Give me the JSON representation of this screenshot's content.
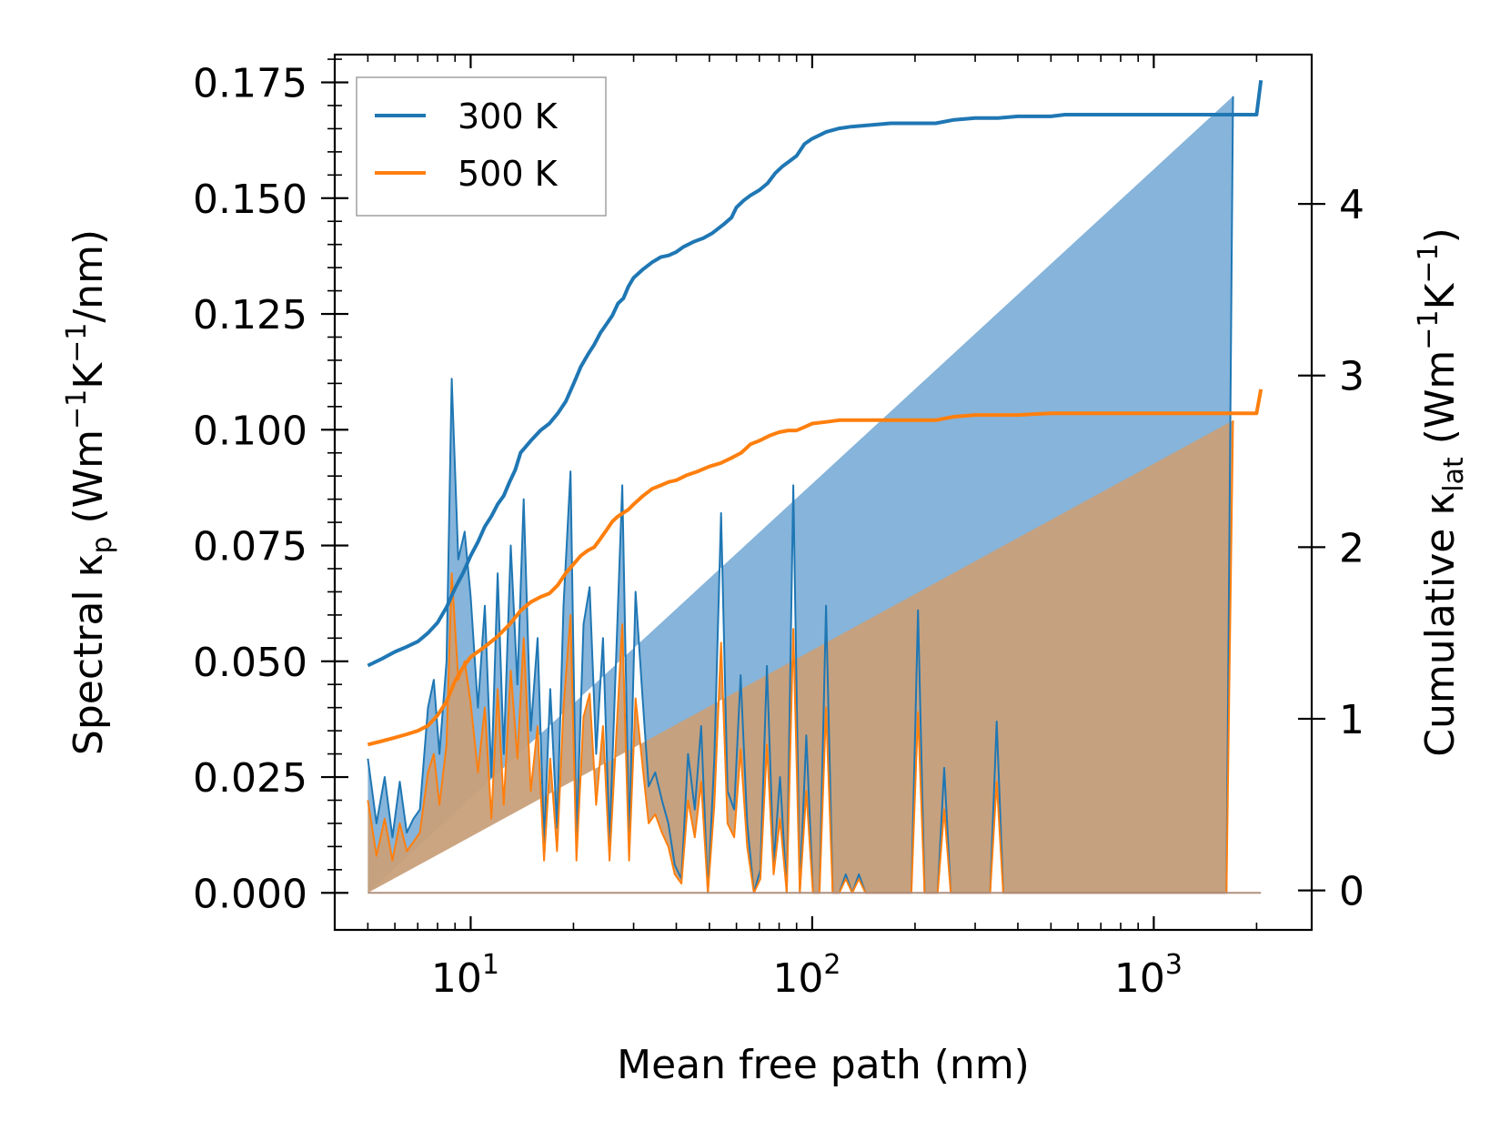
{
  "chart_data": {
    "type": "line",
    "title": "",
    "xlabel": "Mean free path (nm)",
    "xscale": "log",
    "xlim": [
      4.0,
      2900
    ],
    "x_ticks": [
      {
        "value": 10,
        "base": "10",
        "exp": "1"
      },
      {
        "value": 100,
        "base": "10",
        "exp": "2"
      },
      {
        "value": 1000,
        "base": "10",
        "exp": "3"
      }
    ],
    "ylabel_left": {
      "prefix": "Spectral κ",
      "sub": "p",
      "units_pre": " (Wm",
      "exp1": "−1",
      "mid": "K",
      "exp2": "−1",
      "units_post": "/nm)"
    },
    "ylim_left": [
      -0.008,
      0.181
    ],
    "y_ticks_left": [
      "0.000",
      "0.025",
      "0.050",
      "0.075",
      "0.100",
      "0.125",
      "0.150",
      "0.175"
    ],
    "ylabel_right": {
      "prefix": "Cumulative κ",
      "sub": "lat",
      "units_pre": " (Wm",
      "exp1": "−1",
      "mid": "K",
      "exp2": "−1",
      "units_post": ")"
    },
    "ylim_right": [
      -0.23,
      4.87
    ],
    "y_ticks_right": [
      "0",
      "1",
      "2",
      "3",
      "4"
    ],
    "legend": {
      "position": "upper-left",
      "entries": [
        "300 K",
        "500 K"
      ]
    },
    "colors": {
      "300K": "#1f77b4",
      "500K": "#ff7f0e",
      "fill300": "#7fb0d8",
      "fill500": "#c8a07a"
    },
    "spectral": {
      "axis": "left",
      "x": [
        5.0,
        5.3,
        5.6,
        5.9,
        6.2,
        6.5,
        6.8,
        7.1,
        7.5,
        7.8,
        8.1,
        8.5,
        8.8,
        9.2,
        9.6,
        10.0,
        10.5,
        11.0,
        11.5,
        12.0,
        12.5,
        13.1,
        13.7,
        14.3,
        15.0,
        15.7,
        16.4,
        17.1,
        17.9,
        18.7,
        19.6,
        20.4,
        21.4,
        22.3,
        23.3,
        24.4,
        25.5,
        26.6,
        27.8,
        29.1,
        30.4,
        31.8,
        33.2,
        34.7,
        36.3,
        37.9,
        39.6,
        41.4,
        43.3,
        45.3,
        47.3,
        49.5,
        51.7,
        54.1,
        56.5,
        59.1,
        61.7,
        64.5,
        67.5,
        70.5,
        73.7,
        77.1,
        80.5,
        84.2,
        88.0,
        92.0,
        96.1,
        100.5,
        105.0,
        109.8,
        114.8,
        120.0,
        125.4,
        131.0,
        137.0,
        143.2,
        149.6,
        156.4,
        163.5,
        170.9,
        178.6,
        186.7,
        195.1,
        204.0,
        213.2,
        222.8,
        232.9,
        243.4,
        254.5,
        266.0,
        278.0,
        290.6,
        303.7,
        317.5,
        331.8,
        346.8,
        362.5,
        378.9,
        396.1,
        414.0,
        432.7,
        452.3,
        472.8,
        494.2,
        516.5,
        539.9,
        564.3,
        589.9,
        616.6,
        644.5,
        673.6,
        704.1,
        736.0,
        769.3,
        804.1,
        840.4,
        878.5,
        918.2,
        959.8,
        1003.2,
        1048.6,
        1096.0,
        1145.6,
        1197.4,
        1251.6,
        1308.2,
        1367.4,
        1429.3,
        1493.9,
        1561.5,
        1632.2,
        1706.0,
        1783.2,
        1863.9,
        1948.2,
        2000.0,
        2060.0
      ],
      "series_300K": [
        0.029,
        0.015,
        0.025,
        0.012,
        0.024,
        0.013,
        0.016,
        0.018,
        0.04,
        0.046,
        0.03,
        0.05,
        0.111,
        0.072,
        0.078,
        0.064,
        0.04,
        0.062,
        0.025,
        0.069,
        0.03,
        0.075,
        0.045,
        0.085,
        0.035,
        0.055,
        0.011,
        0.044,
        0.014,
        0.062,
        0.091,
        0.011,
        0.058,
        0.066,
        0.03,
        0.055,
        0.011,
        0.049,
        0.088,
        0.011,
        0.065,
        0.043,
        0.023,
        0.026,
        0.02,
        0.015,
        0.006,
        0.003,
        0.03,
        0.018,
        0.036,
        0.0,
        0.029,
        0.082,
        0.022,
        0.018,
        0.047,
        0.015,
        0.0,
        0.005,
        0.049,
        0.006,
        0.025,
        0.0,
        0.088,
        0.0,
        0.034,
        0.0,
        0.0,
        0.062,
        0.0,
        0.0,
        0.004,
        0.0,
        0.004,
        0.0,
        0.0,
        0.0,
        0.0,
        0.0,
        0.0,
        0.0,
        0.0,
        0.061,
        0.0,
        0.0,
        0.0,
        0.027,
        0.0,
        0.0,
        0.0,
        0.0,
        0.0,
        0.0,
        0.0,
        0.037,
        0.0,
        0.0,
        0.0,
        0.0,
        0.0,
        0.0,
        0.0,
        0.0,
        0.0,
        0.0,
        0.0,
        0.0,
        0.0,
        0.0,
        0.0,
        0.0,
        0.0,
        0.0,
        0.0,
        0.0,
        0.0,
        0.0,
        0.0,
        0.0,
        0.0,
        0.0,
        0.0,
        0.0,
        0.0,
        0.0,
        0.0,
        0.0,
        0.0,
        0.0,
        0.0,
        0.172
      ],
      "series_500K": [
        0.02,
        0.008,
        0.016,
        0.007,
        0.015,
        0.009,
        0.011,
        0.013,
        0.026,
        0.03,
        0.019,
        0.032,
        0.069,
        0.046,
        0.05,
        0.041,
        0.026,
        0.04,
        0.016,
        0.044,
        0.019,
        0.048,
        0.029,
        0.055,
        0.022,
        0.036,
        0.007,
        0.029,
        0.009,
        0.04,
        0.06,
        0.007,
        0.038,
        0.043,
        0.019,
        0.036,
        0.007,
        0.032,
        0.058,
        0.007,
        0.042,
        0.028,
        0.015,
        0.017,
        0.013,
        0.01,
        0.004,
        0.002,
        0.02,
        0.012,
        0.024,
        0.0,
        0.019,
        0.054,
        0.015,
        0.012,
        0.031,
        0.01,
        0.0,
        0.003,
        0.032,
        0.004,
        0.016,
        0.0,
        0.057,
        0.0,
        0.022,
        0.0,
        0.0,
        0.04,
        0.0,
        0.0,
        0.003,
        0.0,
        0.003,
        0.0,
        0.0,
        0.0,
        0.0,
        0.0,
        0.0,
        0.0,
        0.0,
        0.039,
        0.0,
        0.0,
        0.0,
        0.018,
        0.0,
        0.0,
        0.0,
        0.0,
        0.0,
        0.0,
        0.0,
        0.024,
        0.0,
        0.0,
        0.0,
        0.0,
        0.0,
        0.0,
        0.0,
        0.0,
        0.0,
        0.0,
        0.0,
        0.0,
        0.0,
        0.0,
        0.0,
        0.0,
        0.0,
        0.0,
        0.0,
        0.0,
        0.0,
        0.0,
        0.0,
        0.0,
        0.0,
        0.0,
        0.0,
        0.0,
        0.0,
        0.0,
        0.0,
        0.0,
        0.0,
        0.0,
        0.0,
        0.102
      ]
    },
    "cumulative": {
      "axis": "right",
      "series_300K": {
        "x": [
          5.0,
          5.5,
          6.0,
          6.5,
          7.0,
          7.5,
          8.0,
          8.5,
          9.0,
          9.5,
          10.0,
          10.5,
          11.0,
          11.5,
          12.0,
          12.5,
          13.0,
          13.5,
          14.0,
          15.0,
          16.0,
          17.0,
          18.0,
          19.0,
          20.0,
          21.0,
          22.0,
          23.0,
          24.0,
          25.0,
          26.0,
          27.0,
          28.0,
          29.0,
          30.0,
          32.0,
          34.0,
          36.0,
          38.0,
          40.0,
          42.0,
          45.0,
          48.0,
          51.0,
          55.0,
          58.0,
          60.0,
          63.0,
          66.0,
          70.0,
          74.0,
          78.0,
          82.0,
          86.0,
          90.0,
          95.0,
          100.0,
          110.0,
          120.0,
          130.0,
          150.0,
          170.0,
          200.0,
          230.0,
          260.0,
          300.0,
          350.0,
          400.0,
          450.0,
          500.0,
          550.0,
          600.0,
          700.0,
          800.0,
          1000.0,
          1300.0,
          1600.0,
          1900.0,
          2000.0,
          2060.0
        ],
        "y": [
          1.31,
          1.35,
          1.39,
          1.42,
          1.45,
          1.5,
          1.56,
          1.65,
          1.76,
          1.85,
          1.95,
          2.03,
          2.12,
          2.18,
          2.25,
          2.3,
          2.38,
          2.45,
          2.55,
          2.62,
          2.68,
          2.72,
          2.78,
          2.85,
          2.95,
          3.05,
          3.12,
          3.18,
          3.25,
          3.3,
          3.35,
          3.42,
          3.45,
          3.52,
          3.57,
          3.62,
          3.66,
          3.69,
          3.7,
          3.72,
          3.75,
          3.78,
          3.8,
          3.83,
          3.88,
          3.92,
          3.98,
          4.02,
          4.05,
          4.08,
          4.12,
          4.18,
          4.22,
          4.25,
          4.28,
          4.35,
          4.38,
          4.42,
          4.44,
          4.45,
          4.46,
          4.47,
          4.47,
          4.47,
          4.49,
          4.5,
          4.5,
          4.51,
          4.51,
          4.51,
          4.52,
          4.52,
          4.52,
          4.52,
          4.52,
          4.52,
          4.52,
          4.52,
          4.52,
          4.72
        ]
      },
      "series_500K": {
        "x": [
          5.0,
          5.5,
          6.0,
          6.5,
          7.0,
          7.5,
          8.0,
          8.5,
          9.0,
          9.5,
          10.0,
          11.0,
          12.0,
          13.0,
          14.0,
          15.0,
          16.0,
          17.0,
          18.0,
          19.0,
          20.0,
          21.0,
          22.0,
          23.0,
          24.0,
          25.0,
          26.0,
          27.0,
          28.0,
          29.0,
          30.0,
          32.0,
          34.0,
          36.0,
          38.0,
          40.0,
          43.0,
          46.0,
          50.0,
          54.0,
          58.0,
          62.0,
          66.0,
          70.0,
          75.0,
          80.0,
          85.0,
          90.0,
          95.0,
          100.0,
          110.0,
          120.0,
          130.0,
          150.0,
          170.0,
          200.0,
          230.0,
          260.0,
          300.0,
          350.0,
          400.0,
          500.0,
          600.0,
          800.0,
          1000.0,
          1300.0,
          1600.0,
          1900.0,
          2000.0,
          2060.0
        ],
        "y": [
          0.85,
          0.87,
          0.89,
          0.91,
          0.93,
          0.96,
          1.02,
          1.1,
          1.22,
          1.3,
          1.36,
          1.42,
          1.48,
          1.55,
          1.63,
          1.68,
          1.71,
          1.73,
          1.78,
          1.85,
          1.9,
          1.95,
          1.98,
          2.0,
          2.05,
          2.1,
          2.15,
          2.18,
          2.2,
          2.22,
          2.25,
          2.3,
          2.34,
          2.36,
          2.38,
          2.39,
          2.42,
          2.44,
          2.47,
          2.49,
          2.52,
          2.55,
          2.6,
          2.62,
          2.65,
          2.67,
          2.68,
          2.68,
          2.7,
          2.72,
          2.73,
          2.74,
          2.74,
          2.74,
          2.74,
          2.74,
          2.74,
          2.76,
          2.77,
          2.77,
          2.77,
          2.78,
          2.78,
          2.78,
          2.78,
          2.78,
          2.78,
          2.78,
          2.78,
          2.92
        ]
      }
    }
  }
}
